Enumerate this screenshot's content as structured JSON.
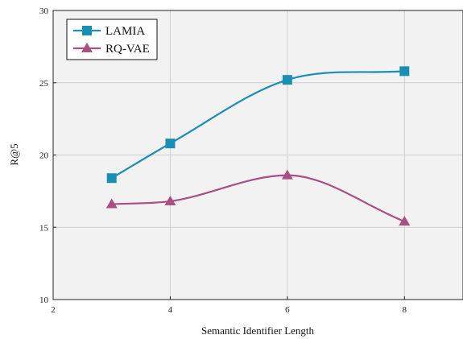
{
  "chart_data": {
    "type": "line",
    "xlabel": "Semantic Identifier Length",
    "ylabel": "R@5",
    "xlim": [
      2,
      9
    ],
    "ylim": [
      10,
      30
    ],
    "xticks": [
      2,
      4,
      6,
      8
    ],
    "yticks": [
      10,
      15,
      20,
      25,
      30
    ],
    "grid": true,
    "legend_position": "top-left",
    "x": [
      3,
      4,
      6,
      8
    ],
    "series": [
      {
        "name": "LAMIA",
        "values": [
          18.4,
          20.8,
          25.2,
          25.8
        ],
        "color": "#1b8fb3",
        "marker": "square"
      },
      {
        "name": "RQ-VAE",
        "values": [
          16.6,
          16.8,
          18.6,
          15.4
        ],
        "color": "#a94f82",
        "marker": "triangle"
      }
    ]
  }
}
